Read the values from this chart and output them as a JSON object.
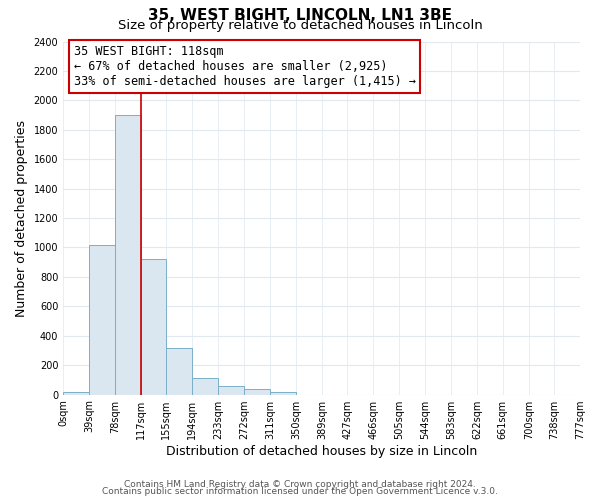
{
  "title": "35, WEST BIGHT, LINCOLN, LN1 3BE",
  "subtitle": "Size of property relative to detached houses in Lincoln",
  "xlabel": "Distribution of detached houses by size in Lincoln",
  "ylabel": "Number of detached properties",
  "bar_color": "#dae6f0",
  "bar_edge_color": "#7aafc8",
  "bin_edges": [
    0,
    39,
    78,
    117,
    155,
    194,
    233,
    272,
    311,
    350,
    389,
    427,
    466,
    505,
    544,
    583,
    622,
    661,
    700,
    738,
    777
  ],
  "bin_labels": [
    "0sqm",
    "39sqm",
    "78sqm",
    "117sqm",
    "155sqm",
    "194sqm",
    "233sqm",
    "272sqm",
    "311sqm",
    "350sqm",
    "389sqm",
    "427sqm",
    "466sqm",
    "505sqm",
    "544sqm",
    "583sqm",
    "622sqm",
    "661sqm",
    "700sqm",
    "738sqm",
    "777sqm"
  ],
  "counts": [
    20,
    1020,
    1900,
    920,
    320,
    110,
    55,
    35,
    20,
    0,
    0,
    0,
    0,
    0,
    0,
    0,
    0,
    0,
    0,
    0
  ],
  "property_line_x": 117,
  "property_line_color": "#cc0000",
  "annotation_title": "35 WEST BIGHT: 118sqm",
  "annotation_line1": "← 67% of detached houses are smaller (2,925)",
  "annotation_line2": "33% of semi-detached houses are larger (1,415) →",
  "annotation_box_color": "#ffffff",
  "annotation_box_edge_color": "#cc0000",
  "ylim": [
    0,
    2400
  ],
  "yticks": [
    0,
    200,
    400,
    600,
    800,
    1000,
    1200,
    1400,
    1600,
    1800,
    2000,
    2200,
    2400
  ],
  "footer_line1": "Contains HM Land Registry data © Crown copyright and database right 2024.",
  "footer_line2": "Contains public sector information licensed under the Open Government Licence v.3.0.",
  "bg_color": "#ffffff",
  "grid_color": "#e0e8f0",
  "title_fontsize": 11,
  "subtitle_fontsize": 9.5,
  "axis_label_fontsize": 9,
  "tick_fontsize": 7,
  "annotation_fontsize": 8.5,
  "footer_fontsize": 6.5
}
